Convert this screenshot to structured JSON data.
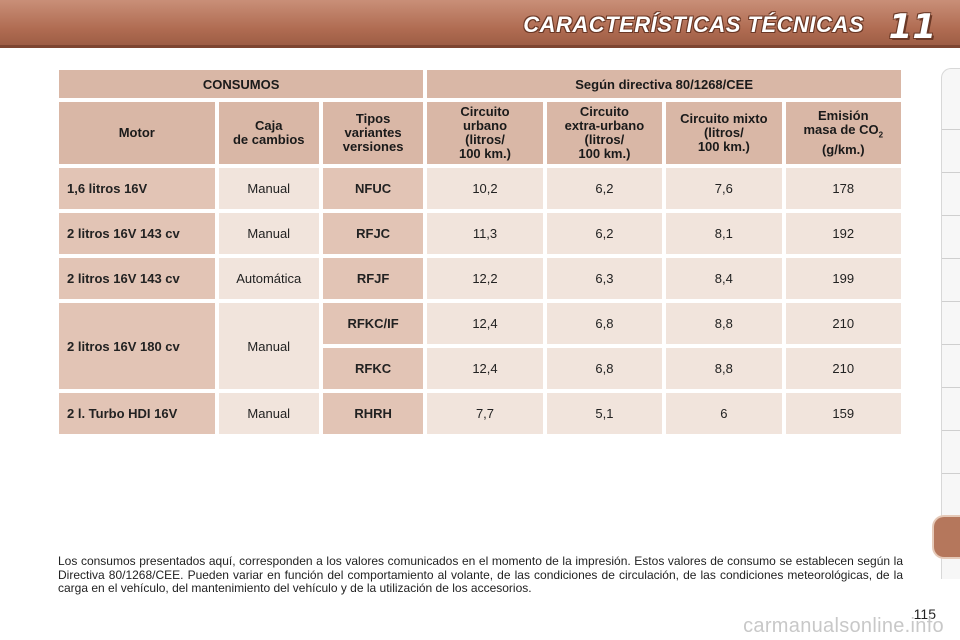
{
  "header": {
    "title": "CARACTERÍSTICAS TÉCNICAS",
    "chapter_number": "11"
  },
  "table": {
    "group_headers": [
      "CONSUMOS",
      "Según directiva 80/1268/CEE"
    ],
    "column_headers": {
      "motor": "Motor",
      "caja_line1": "Caja",
      "caja_line2": "de cambios",
      "tipos_line1": "Tipos",
      "tipos_line2": "variantes",
      "tipos_line3": "versiones",
      "urbano_line1": "Circuito",
      "urbano_line2": "urbano",
      "urbano_line3": "(litros/",
      "urbano_line4": "100 km.)",
      "extra_line1": "Circuito",
      "extra_line2": "extra-urbano",
      "extra_line3": "(litros/",
      "extra_line4": "100 km.)",
      "mixto_line1": "Circuito mixto",
      "mixto_line2": "(litros/",
      "mixto_line3": "100 km.)",
      "emision_line1": "Emisión",
      "emision_line2": "masa de CO",
      "emision_sub": "2",
      "emision_line3": "(g/km.)"
    },
    "rows": [
      {
        "motor": "1,6 litros 16V",
        "caja": "Manual",
        "codes": [
          {
            "code": "NFUC",
            "urbano": "10,2",
            "extra": "6,2",
            "mixto": "7,6",
            "co2": "178"
          }
        ]
      },
      {
        "motor": "2 litros 16V 143 cv",
        "caja": "Manual",
        "codes": [
          {
            "code": "RFJC",
            "urbano": "11,3",
            "extra": "6,2",
            "mixto": "8,1",
            "co2": "192"
          }
        ]
      },
      {
        "motor": "2 litros 16V 143 cv",
        "caja": "Automática",
        "codes": [
          {
            "code": "RFJF",
            "urbano": "12,2",
            "extra": "6,3",
            "mixto": "8,4",
            "co2": "199"
          }
        ]
      },
      {
        "motor": "2 litros 16V 180 cv",
        "caja": "Manual",
        "codes": [
          {
            "code": "RFKC/IF",
            "urbano": "12,4",
            "extra": "6,8",
            "mixto": "8,8",
            "co2": "210"
          },
          {
            "code": "RFKC",
            "urbano": "12,4",
            "extra": "6,8",
            "mixto": "8,8",
            "co2": "210"
          }
        ]
      },
      {
        "motor": "2 l. Turbo HDI 16V",
        "caja": "Manual",
        "codes": [
          {
            "code": "RHRH",
            "urbano": "7,7",
            "extra": "5,1",
            "mixto": "6",
            "co2": "159"
          }
        ]
      }
    ]
  },
  "footnote": "Los consumos presentados aquí, corresponden a los valores comunicados en el momento de la impresión. Estos valores de consumo se establecen según la Directiva 80/1268/CEE. Pueden variar en función del comportamiento al volante, de las condiciones de circulación, de las condiciones meteorológicas, de la carga en el vehículo, del mantenimiento del vehículo y de la utilización de los accesorios.",
  "page_number": "115",
  "watermark": "carmanualsonline.info",
  "colors": {
    "header_band": "#b06c52",
    "header_cell": "#d9b7a6",
    "label_cell": "#e2c4b5",
    "value_cell": "#f1e4dc"
  }
}
